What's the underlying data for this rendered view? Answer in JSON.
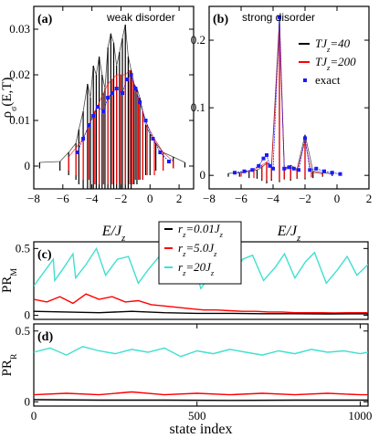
{
  "colors": {
    "black": "#000000",
    "red": "#ff0000",
    "cyan": "#40e0d0",
    "blue": "#1a1aff"
  },
  "chart_data": [
    {
      "id": "a",
      "type": "line",
      "panel_label": "(a)",
      "annotation": "weak disorder",
      "ylabel": "ρσ(E,T)",
      "xlabel": "E/Jz",
      "xlim": [
        -8,
        3
      ],
      "ylim": [
        -0.005,
        0.035
      ],
      "xticks": [
        -8,
        -6,
        -4,
        -2,
        0,
        2
      ],
      "yticks": [
        0,
        0.01,
        0.02,
        0.03
      ],
      "ytick_labels": [
        "0",
        "0.01",
        "0.02",
        "0.03"
      ],
      "grid": false,
      "series": [
        {
          "key": "tj40",
          "color": "#000000",
          "x": [
            -7.6,
            -6.2,
            -5.6,
            -5.1,
            -4.9,
            -4.6,
            -4.3,
            -4.1,
            -3.9,
            -3.7,
            -3.5,
            -3.3,
            -3.1,
            -2.9,
            -2.7,
            -2.5,
            -2.3,
            -2.1,
            -1.9,
            -1.7,
            -1.5,
            -1.3,
            -1.1,
            -0.9,
            -0.7,
            -0.5,
            -0.3,
            0.0,
            0.4,
            0.9,
            1.6,
            2.4
          ],
          "y": [
            0.0008,
            0.001,
            0.003,
            0.005,
            0.008,
            0.012,
            0.018,
            0.015,
            0.022,
            0.02,
            0.024,
            0.02,
            0.017,
            0.026,
            0.029,
            0.027,
            0.022,
            0.025,
            0.028,
            0.031,
            0.024,
            0.021,
            0.018,
            0.017,
            0.015,
            0.012,
            0.009,
            0.007,
            0.005,
            0.003,
            0.002,
            0.0008
          ],
          "yneg": [
            -0.0005,
            -0.001,
            -0.002,
            -0.003,
            -0.004,
            -0.005,
            -0.005,
            -0.005,
            -0.005,
            -0.005,
            -0.005,
            -0.005,
            -0.005,
            -0.005,
            -0.005,
            -0.005,
            -0.005,
            -0.005,
            -0.005,
            -0.005,
            -0.005,
            -0.005,
            -0.004,
            -0.004,
            -0.003,
            -0.003,
            -0.002,
            -0.002,
            -0.001,
            -0.001,
            -0.0005,
            -0.0003
          ]
        },
        {
          "key": "tj200",
          "color": "#ff0000",
          "x": [
            -5.6,
            -5.1,
            -4.6,
            -4.2,
            -3.8,
            -3.5,
            -3.2,
            -2.9,
            -2.6,
            -2.3,
            -2.0,
            -1.7,
            -1.4,
            -1.2,
            -1.0,
            -0.8,
            -0.5,
            -0.2,
            0.3,
            0.9,
            1.6
          ],
          "y": [
            0.002,
            0.004,
            0.006,
            0.009,
            0.012,
            0.014,
            0.016,
            0.018,
            0.019,
            0.02,
            0.02,
            0.02,
            0.021,
            0.019,
            0.017,
            0.015,
            0.012,
            0.009,
            0.006,
            0.003,
            0.001
          ],
          "yneg": [
            -0.001,
            -0.002,
            -0.003,
            -0.003,
            -0.004,
            -0.004,
            -0.004,
            -0.004,
            -0.004,
            -0.004,
            -0.004,
            -0.004,
            -0.004,
            -0.004,
            -0.003,
            -0.003,
            -0.003,
            -0.002,
            -0.002,
            -0.001,
            -0.0005
          ]
        },
        {
          "key": "exact",
          "color": "#1a1aff",
          "marker": "square",
          "x": [
            -5.0,
            -4.6,
            -4.2,
            -3.9,
            -3.6,
            -3.2,
            -2.9,
            -2.6,
            -2.3,
            -1.9,
            -1.6,
            -1.3,
            -1.0,
            -0.7,
            -0.3,
            0.2,
            0.7,
            1.3
          ],
          "y": [
            0.003,
            0.006,
            0.009,
            0.011,
            0.013,
            0.012,
            0.015,
            0.016,
            0.017,
            0.016,
            0.019,
            0.02,
            0.017,
            0.014,
            0.01,
            0.006,
            0.003,
            0.001
          ]
        }
      ]
    },
    {
      "id": "b",
      "type": "line",
      "panel_label": "(b)",
      "annotation": "strong disorder",
      "xlabel": "E/Jz",
      "xlim": [
        -8,
        2
      ],
      "ylim": [
        -0.02,
        0.25
      ],
      "xticks": [
        -8,
        -6,
        -4,
        -2,
        0,
        2
      ],
      "yticks": [
        0,
        0.1,
        0.2
      ],
      "ytick_labels": [
        "0",
        "0.1",
        "0.2"
      ],
      "grid": false,
      "legend_position": "top-right",
      "legend": [
        {
          "key": "tj40",
          "label": "TJz=40",
          "color": "#000000"
        },
        {
          "key": "tj200",
          "label": "TJz=200",
          "color": "#ff0000"
        },
        {
          "key": "exact",
          "label": "exact",
          "color": "#1a1aff"
        }
      ],
      "series": [
        {
          "key": "tj40",
          "color": "#000000",
          "x": [
            -6.8,
            -6.1,
            -5.5,
            -5.0,
            -4.7,
            -4.4,
            -4.1,
            -3.6,
            -3.3,
            -2.9,
            -2.5,
            -2.0,
            -1.5,
            -0.9,
            -0.3
          ],
          "y": [
            0.003,
            0.004,
            0.006,
            0.008,
            0.012,
            0.018,
            0.014,
            0.23,
            0.01,
            0.015,
            0.009,
            0.06,
            0.006,
            0.004,
            0.002
          ],
          "yneg": [
            -0.002,
            -0.002,
            -0.004,
            -0.005,
            -0.008,
            -0.012,
            -0.008,
            -0.01,
            -0.006,
            -0.008,
            -0.005,
            -0.006,
            -0.004,
            -0.002,
            -0.001
          ]
        },
        {
          "key": "tj200",
          "color": "#ff0000",
          "x": [
            -6.0,
            -5.2,
            -4.7,
            -4.4,
            -4.1,
            -3.6,
            -3.3,
            -2.9,
            -2.5,
            -2.0,
            -1.6,
            -0.9
          ],
          "y": [
            0.003,
            0.008,
            0.015,
            0.02,
            0.012,
            0.22,
            0.008,
            0.012,
            0.007,
            0.05,
            0.005,
            0.002
          ],
          "yneg": [
            -0.002,
            -0.004,
            -0.006,
            -0.008,
            -0.006,
            -0.008,
            -0.005,
            -0.006,
            -0.004,
            -0.004,
            -0.003,
            -0.001
          ]
        },
        {
          "key": "exact",
          "color": "#1a1aff",
          "marker": "square",
          "x": [
            -6.4,
            -5.8,
            -5.3,
            -4.9,
            -4.6,
            -4.4,
            -4.2,
            -4.0,
            -3.6,
            -3.3,
            -3.0,
            -2.7,
            -2.4,
            -2.0,
            -1.7,
            -1.3,
            -0.8,
            -0.3,
            0.2
          ],
          "y": [
            0.004,
            0.006,
            0.008,
            0.014,
            0.025,
            0.03,
            0.014,
            0.01,
            0.234,
            0.01,
            0.012,
            0.01,
            0.008,
            0.055,
            0.008,
            0.01,
            0.006,
            0.004,
            0.002
          ]
        }
      ]
    },
    {
      "id": "c",
      "type": "line",
      "panel_label": "(c)",
      "ylabel": "PRM",
      "xlim": [
        0,
        1024
      ],
      "ylim": [
        -0.03,
        0.55
      ],
      "yticks": [
        0,
        0.5
      ],
      "ytick_labels": [
        "0",
        "0.5"
      ],
      "grid": false,
      "legend_position": "top-center",
      "legend": [
        {
          "key": "r001",
          "label": "rz=0.01Jz",
          "color": "#000000"
        },
        {
          "key": "r5",
          "label": "rz=5.0Jz",
          "color": "#ff0000"
        },
        {
          "key": "r20",
          "label": "rz=20Jz",
          "color": "#40e0d0"
        }
      ],
      "series": [
        {
          "key": "r20",
          "color": "#40e0d0",
          "x": [
            0,
            30,
            60,
            64,
            90,
            120,
            128,
            160,
            192,
            220,
            256,
            290,
            320,
            350,
            384,
            420,
            448,
            480,
            512,
            540,
            576,
            600,
            640,
            670,
            704,
            740,
            768,
            800,
            832,
            860,
            896,
            930,
            960,
            990,
            1024
          ],
          "y": [
            0.22,
            0.32,
            0.42,
            0.26,
            0.35,
            0.46,
            0.28,
            0.38,
            0.5,
            0.3,
            0.42,
            0.44,
            0.24,
            0.34,
            0.44,
            0.3,
            0.4,
            0.46,
            0.2,
            0.3,
            0.4,
            0.28,
            0.42,
            0.45,
            0.26,
            0.36,
            0.46,
            0.28,
            0.4,
            0.47,
            0.24,
            0.34,
            0.44,
            0.3,
            0.38
          ]
        },
        {
          "key": "r5",
          "color": "#ff0000",
          "x": [
            0,
            40,
            80,
            120,
            160,
            200,
            240,
            280,
            320,
            360,
            400,
            440,
            480,
            520,
            560,
            600,
            640,
            680,
            720,
            760,
            800,
            840,
            880,
            920,
            960,
            1000,
            1024
          ],
          "y": [
            0.12,
            0.1,
            0.14,
            0.09,
            0.16,
            0.12,
            0.14,
            0.1,
            0.11,
            0.08,
            0.07,
            0.06,
            0.05,
            0.04,
            0.04,
            0.035,
            0.03,
            0.03,
            0.025,
            0.025,
            0.02,
            0.02,
            0.02,
            0.018,
            0.02,
            0.02,
            0.02
          ]
        },
        {
          "key": "r001",
          "color": "#000000",
          "x": [
            0,
            100,
            200,
            300,
            400,
            500,
            600,
            700,
            800,
            900,
            1000,
            1024
          ],
          "y": [
            0.03,
            0.025,
            0.02,
            0.03,
            0.02,
            0.015,
            0.015,
            0.012,
            0.012,
            0.01,
            0.012,
            0.01
          ]
        }
      ]
    },
    {
      "id": "d",
      "type": "line",
      "panel_label": "(d)",
      "ylabel": "PRR",
      "xlabel": "state index",
      "xlim": [
        0,
        1024
      ],
      "ylim": [
        -0.03,
        0.55
      ],
      "xticks": [
        0,
        500,
        1000
      ],
      "yticks": [
        0,
        0.5
      ],
      "ytick_labels": [
        "0",
        "0.5"
      ],
      "grid": false,
      "series": [
        {
          "key": "r20",
          "color": "#40e0d0",
          "x": [
            0,
            50,
            100,
            150,
            200,
            250,
            300,
            350,
            400,
            450,
            500,
            550,
            600,
            650,
            700,
            750,
            800,
            850,
            900,
            950,
            1000,
            1024
          ],
          "y": [
            0.35,
            0.38,
            0.33,
            0.39,
            0.36,
            0.34,
            0.37,
            0.35,
            0.38,
            0.32,
            0.36,
            0.34,
            0.37,
            0.35,
            0.33,
            0.36,
            0.34,
            0.37,
            0.35,
            0.36,
            0.34,
            0.35
          ]
        },
        {
          "key": "r5",
          "color": "#ff0000",
          "x": [
            0,
            100,
            200,
            300,
            400,
            500,
            600,
            700,
            800,
            900,
            1000,
            1024
          ],
          "y": [
            0.05,
            0.06,
            0.05,
            0.07,
            0.05,
            0.06,
            0.05,
            0.06,
            0.05,
            0.06,
            0.05,
            0.05
          ]
        },
        {
          "key": "r001",
          "color": "#000000",
          "x": [
            0,
            200,
            400,
            600,
            800,
            1000,
            1024
          ],
          "y": [
            0.015,
            0.012,
            0.012,
            0.01,
            0.012,
            0.012,
            0.012
          ]
        }
      ]
    }
  ]
}
